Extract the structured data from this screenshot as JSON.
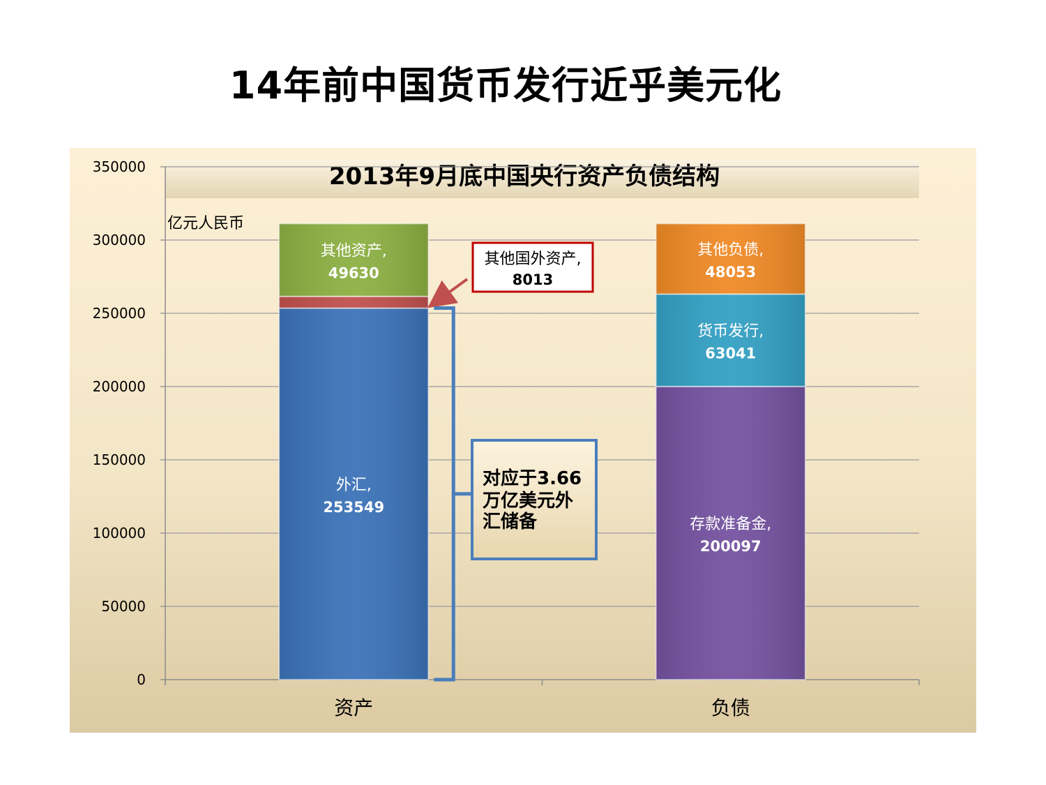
{
  "slide": {
    "title": "14年前中国货币发行近乎美元化"
  },
  "chart_data": {
    "type": "bar",
    "stacked": true,
    "title": "2013年9月底中国央行资产负债结构",
    "unit_label": "亿元人民币",
    "categories": [
      "资产",
      "负债"
    ],
    "ylim": [
      0,
      350000
    ],
    "yticks": [
      "0",
      "50000",
      "100000",
      "150000",
      "200000",
      "250000",
      "300000",
      "350000"
    ],
    "grid": true,
    "segments": [
      {
        "category": "资产",
        "name": "外汇",
        "value": 253549,
        "label": "外汇,",
        "value_label": "253549",
        "color": "#3b72b8"
      },
      {
        "category": "资产",
        "name": "其他国外资产",
        "value": 8013,
        "label": "",
        "value_label": "",
        "color": "#c0504d"
      },
      {
        "category": "资产",
        "name": "其他资产",
        "value": 49630,
        "label": "其他资产,",
        "value_label": "49630",
        "color": "#8cb042"
      },
      {
        "category": "负债",
        "name": "存款准备金",
        "value": 200097,
        "label": "存款准备金,",
        "value_label": "200097",
        "color": "#7452a0"
      },
      {
        "category": "负债",
        "name": "货币发行",
        "value": 63041,
        "label": "货币发行,",
        "value_label": "63041",
        "color": "#33a0c4"
      },
      {
        "category": "负债",
        "name": "其他负债",
        "value": 48053,
        "label": "其他负债,",
        "value_label": "48053",
        "color": "#f08a26"
      }
    ],
    "callouts": {
      "foreign_assets": {
        "line1": "其他国外资产,",
        "line2": "8013",
        "border": "#c00000"
      },
      "reserve": {
        "line1": "对应于3.66",
        "line2": "万亿美元外",
        "line3": "汇储备",
        "border": "#4a7ebb"
      }
    }
  }
}
